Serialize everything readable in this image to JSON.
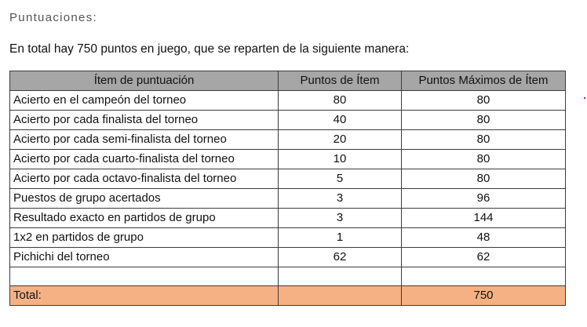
{
  "heading": "Puntuaciones:",
  "intro": "En total hay 750 puntos en juego, que se reparten de la siguiente manera:",
  "table": {
    "headers": [
      "Ítem de puntuación",
      "Puntos de Ítem",
      "Puntos Máximos de Ítem"
    ],
    "rows": [
      {
        "item": "Acierto en el campeón del torneo",
        "points": "80",
        "max": "80"
      },
      {
        "item": "Acierto por cada finalista del torneo",
        "points": "40",
        "max": "80"
      },
      {
        "item": "Acierto por cada semi-finalista del torneo",
        "points": "20",
        "max": "80"
      },
      {
        "item": "Acierto por cada cuarto-finalista del torneo",
        "points": "10",
        "max": "80"
      },
      {
        "item": "Acierto por cada octavo-finalista del torneo",
        "points": "5",
        "max": "80"
      },
      {
        "item": "Puestos de grupo acertados",
        "points": "3",
        "max": "96"
      },
      {
        "item": "Resultado exacto en partidos de grupo",
        "points": "3",
        "max": "144"
      },
      {
        "item": "1x2 en partidos de grupo",
        "points": "1",
        "max": "48"
      },
      {
        "item": "Pichichi del torneo",
        "points": "62",
        "max": "62"
      },
      {
        "item": "",
        "points": "",
        "max": ""
      }
    ],
    "total": {
      "label": "Total:",
      "points": "",
      "max": "750"
    },
    "colors": {
      "header_bg": "#a6a6a6",
      "total_bg": "#f5b183"
    }
  }
}
